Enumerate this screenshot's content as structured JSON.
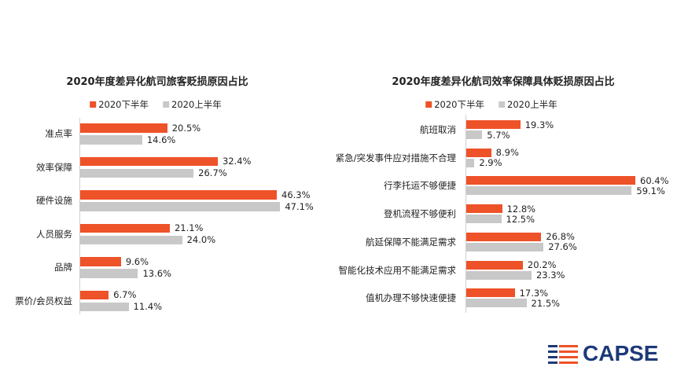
{
  "colors": {
    "h2": "#ee5228",
    "h1": "#c8c8c8",
    "logo_blue": "#1d3a78",
    "logo_orange": "#ee5228"
  },
  "logo": {
    "text": "CAPSE"
  },
  "chart_data": [
    {
      "type": "bar",
      "orientation": "horizontal",
      "title": "2020年度差异化航司旅客贬损原因占比",
      "legend": [
        "2020下半年",
        "2020上半年"
      ],
      "categories": [
        "准点率",
        "效率保障",
        "硬件设施",
        "人员服务",
        "品牌",
        "票价/会员权益"
      ],
      "series": [
        {
          "name": "2020下半年",
          "values": [
            20.5,
            32.4,
            46.3,
            21.1,
            9.6,
            6.7
          ],
          "labels": [
            "20.5%",
            "32.4%",
            "46.3%",
            "21.1%",
            "9.6%",
            "6.7%"
          ]
        },
        {
          "name": "2020上半年",
          "values": [
            14.6,
            26.7,
            47.1,
            24.0,
            13.6,
            11.4
          ],
          "labels": [
            "14.6%",
            "26.7%",
            "47.1%",
            "24.0%",
            "13.6%",
            "11.4%"
          ]
        }
      ]
    },
    {
      "type": "bar",
      "orientation": "horizontal",
      "title": "2020年度差异化航司效率保障具体贬损原因占比",
      "legend": [
        "2020下半年",
        "2020上半年"
      ],
      "categories": [
        "航班取消",
        "紧急/突发事件应对措施不合理",
        "行李托运不够便捷",
        "登机流程不够便利",
        "航延保障不能满足需求",
        "智能化技术应用不能满足需求",
        "值机办理不够快速便捷"
      ],
      "series": [
        {
          "name": "2020下半年",
          "values": [
            19.3,
            8.9,
            60.4,
            12.8,
            26.8,
            20.2,
            17.3
          ],
          "labels": [
            "19.3%",
            "8.9%",
            "60.4%",
            "12.8%",
            "26.8%",
            "20.2%",
            "17.3%"
          ]
        },
        {
          "name": "2020上半年",
          "values": [
            5.7,
            2.9,
            59.1,
            12.5,
            27.6,
            23.3,
            21.5
          ],
          "labels": [
            "5.7%",
            "2.9%",
            "59.1%",
            "12.5%",
            "27.6%",
            "23.3%",
            "21.5%"
          ]
        }
      ]
    }
  ]
}
